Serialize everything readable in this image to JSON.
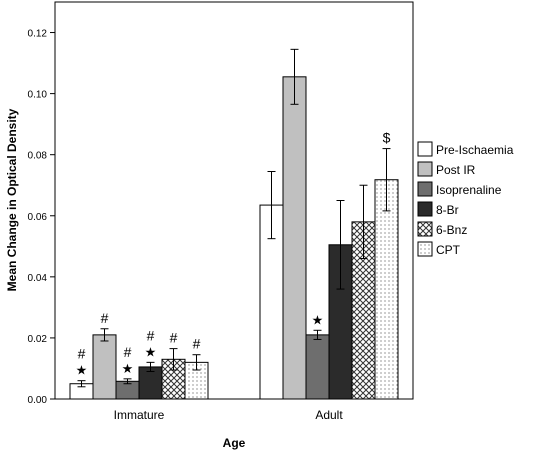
{
  "chart_data": {
    "type": "bar",
    "xlabel": "Age",
    "ylabel": "Mean Change in Optical Density",
    "ylim": [
      0,
      0.13
    ],
    "yticks": [
      "0.00",
      "0.02",
      "0.04",
      "0.06",
      "0.08",
      "0.10",
      "0.12"
    ],
    "categories": [
      "Immature",
      "Adult"
    ],
    "grid": false,
    "legend_position": "right",
    "series": [
      {
        "name": "Pre-Ischaemia",
        "pattern": "white",
        "values": [
          0.005,
          0.0635
        ],
        "err": [
          0.001,
          0.011
        ],
        "annotations": [
          [
            "★",
            "#"
          ],
          []
        ]
      },
      {
        "name": "Post IR",
        "pattern": "lightgray",
        "values": [
          0.021,
          0.1055
        ],
        "err": [
          0.002,
          0.009
        ],
        "annotations": [
          [
            "#"
          ],
          []
        ]
      },
      {
        "name": "Isoprenaline",
        "pattern": "darkgray",
        "values": [
          0.0058,
          0.021
        ],
        "err": [
          0.0008,
          0.0015
        ],
        "annotations": [
          [
            "★",
            "#"
          ],
          [
            "★"
          ]
        ]
      },
      {
        "name": "8-Br",
        "pattern": "black",
        "values": [
          0.0105,
          0.0505
        ],
        "err": [
          0.0015,
          0.0145
        ],
        "annotations": [
          [
            "★",
            "#"
          ],
          []
        ]
      },
      {
        "name": "6-Bnz",
        "pattern": "crosshatch",
        "values": [
          0.013,
          0.058
        ],
        "err": [
          0.0035,
          0.012
        ],
        "annotations": [
          [
            "#"
          ],
          []
        ]
      },
      {
        "name": "CPT",
        "pattern": "dots",
        "values": [
          0.012,
          0.0718
        ],
        "err": [
          0.0025,
          0.0102
        ],
        "annotations": [
          [
            "#"
          ],
          [
            "$"
          ]
        ]
      }
    ]
  }
}
